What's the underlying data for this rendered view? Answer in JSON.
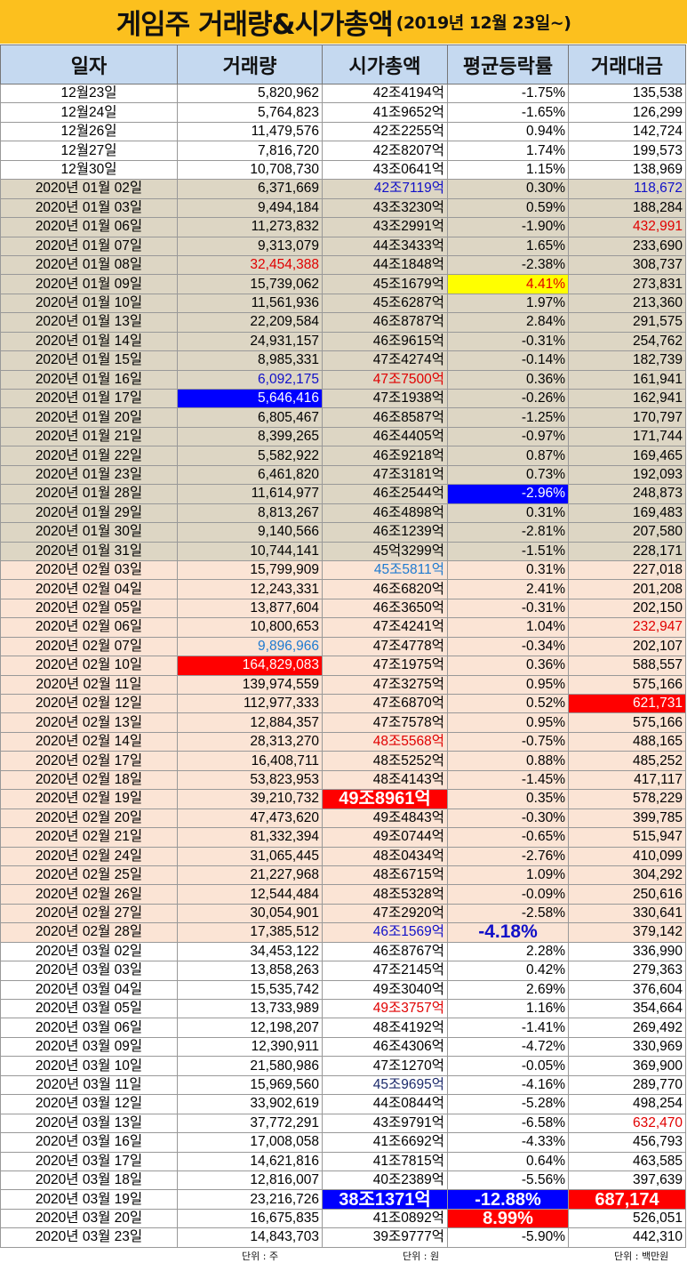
{
  "title": {
    "main": "게임주 거래량&시가총액",
    "sub": "(2019년 12월 23일~)"
  },
  "colors": {
    "title_bg": "#fcc01e",
    "header_bg": "#c5d9f0",
    "dec_group": "#ffffff",
    "jan_group": "#ddd6c4",
    "feb_group": "#fbe4d5",
    "mar_group": "#ffffff",
    "negative": "#1010c8",
    "positive": "#e00000",
    "highlight_red": "#ff0000",
    "highlight_blue": "#0000ff",
    "highlight_yellow": "#ffff00"
  },
  "headers": [
    "일자",
    "거래량",
    "시가총액",
    "평균등락률",
    "거래대금"
  ],
  "units": {
    "volume": "단위 : 주",
    "market_cap": "단위 : 원",
    "trade_value": "단위 : 백만원"
  },
  "rows": [
    {
      "date": "12월23일",
      "volume": "5,820,962",
      "cap": "42조4194억",
      "change": "-1.75%",
      "value": "135,538",
      "g": 0
    },
    {
      "date": "12월24일",
      "volume": "5,764,823",
      "cap": "41조9652억",
      "change": "-1.65%",
      "value": "126,299",
      "g": 0
    },
    {
      "date": "12월26일",
      "volume": "11,479,576",
      "cap": "42조2255억",
      "change": "0.94%",
      "value": "142,724",
      "g": 0
    },
    {
      "date": "12월27일",
      "volume": "7,816,720",
      "cap": "42조8207억",
      "change": "1.74%",
      "value": "199,573",
      "g": 0
    },
    {
      "date": "12월30일",
      "volume": "10,708,730",
      "cap": "43조0641억",
      "change": "1.15%",
      "value": "138,969",
      "g": 0
    },
    {
      "date": "2020년 01월 02일",
      "volume": "6,371,669",
      "cap": "42조7119억",
      "change": "0.30%",
      "value": "118,672",
      "g": 1,
      "cs": {
        "cap": "blue-text",
        "value": "blue-text"
      }
    },
    {
      "date": "2020년 01월 03일",
      "volume": "9,494,184",
      "cap": "43조3230억",
      "change": "0.59%",
      "value": "188,284",
      "g": 1
    },
    {
      "date": "2020년 01월 06일",
      "volume": "11,273,832",
      "cap": "43조2991억",
      "change": "-1.90%",
      "value": "432,991",
      "g": 1,
      "cs": {
        "value": "red-text"
      }
    },
    {
      "date": "2020년 01월 07일",
      "volume": "9,313,079",
      "cap": "44조3433억",
      "change": "1.65%",
      "value": "233,690",
      "g": 1
    },
    {
      "date": "2020년 01월 08일",
      "volume": "32,454,388",
      "cap": "44조1848억",
      "change": "-2.38%",
      "value": "308,737",
      "g": 1,
      "cs": {
        "volume": "red-text"
      }
    },
    {
      "date": "2020년 01월 09일",
      "volume": "15,739,062",
      "cap": "45조1679억",
      "change": "4.41%",
      "value": "273,831",
      "g": 1,
      "cs": {
        "change": "yellow-fill"
      }
    },
    {
      "date": "2020년 01월 10일",
      "volume": "11,561,936",
      "cap": "45조6287억",
      "change": "1.97%",
      "value": "213,360",
      "g": 1
    },
    {
      "date": "2020년 01월 13일",
      "volume": "22,209,584",
      "cap": "46조8787억",
      "change": "2.84%",
      "value": "291,575",
      "g": 1
    },
    {
      "date": "2020년 01월 14일",
      "volume": "24,931,157",
      "cap": "46조9615억",
      "change": "-0.31%",
      "value": "254,762",
      "g": 1
    },
    {
      "date": "2020년 01월 15일",
      "volume": "8,985,331",
      "cap": "47조4274억",
      "change": "-0.14%",
      "value": "182,739",
      "g": 1
    },
    {
      "date": "2020년 01월 16일",
      "volume": "6,092,175",
      "cap": "47조7500억",
      "change": "0.36%",
      "value": "161,941",
      "g": 1,
      "cs": {
        "volume": "blue-text",
        "cap": "red-text"
      }
    },
    {
      "date": "2020년 01월 17일",
      "volume": "5,646,416",
      "cap": "47조1938억",
      "change": "-0.26%",
      "value": "162,941",
      "g": 1,
      "cs": {
        "volume": "blue-fill"
      }
    },
    {
      "date": "2020년 01월 20일",
      "volume": "6,805,467",
      "cap": "46조8587억",
      "change": "-1.25%",
      "value": "170,797",
      "g": 1
    },
    {
      "date": "2020년 01월 21일",
      "volume": "8,399,265",
      "cap": "46조4405억",
      "change": "-0.97%",
      "value": "171,744",
      "g": 1
    },
    {
      "date": "2020년 01월 22일",
      "volume": "5,582,922",
      "cap": "46조9218억",
      "change": "0.87%",
      "value": "169,465",
      "g": 1
    },
    {
      "date": "2020년 01월 23일",
      "volume": "6,461,820",
      "cap": "47조3181억",
      "change": "0.73%",
      "value": "192,093",
      "g": 1
    },
    {
      "date": "2020년 01월 28일",
      "volume": "11,614,977",
      "cap": "46조2544억",
      "change": "-2.96%",
      "value": "248,873",
      "g": 1,
      "cs": {
        "change": "blue-fill"
      }
    },
    {
      "date": "2020년 01월 29일",
      "volume": "8,813,267",
      "cap": "46조4898억",
      "change": "0.31%",
      "value": "169,483",
      "g": 1
    },
    {
      "date": "2020년 01월 30일",
      "volume": "9,140,566",
      "cap": "46조1239억",
      "change": "-2.81%",
      "value": "207,580",
      "g": 1
    },
    {
      "date": "2020년 01월 31일",
      "volume": "10,744,141",
      "cap": "45억3299억",
      "change": "-1.51%",
      "value": "228,171",
      "g": 1
    },
    {
      "date": "2020년 02월 03일",
      "volume": "15,799,909",
      "cap": "45조5811억",
      "change": "0.31%",
      "value": "227,018",
      "g": 2,
      "cs": {
        "cap": "lblue-text"
      }
    },
    {
      "date": "2020년 02월 04일",
      "volume": "12,243,331",
      "cap": "46조6820억",
      "change": "2.41%",
      "value": "201,208",
      "g": 2
    },
    {
      "date": "2020년 02월 05일",
      "volume": "13,877,604",
      "cap": "46조3650억",
      "change": "-0.31%",
      "value": "202,150",
      "g": 2
    },
    {
      "date": "2020년 02월 06일",
      "volume": "10,800,653",
      "cap": "47조4241억",
      "change": "1.04%",
      "value": "232,947",
      "g": 2,
      "cs": {
        "value": "red-text"
      }
    },
    {
      "date": "2020년 02월 07일",
      "volume": "9,896,966",
      "cap": "47조4778억",
      "change": "-0.34%",
      "value": "202,107",
      "g": 2,
      "cs": {
        "volume": "lblue-text"
      }
    },
    {
      "date": "2020년 02월 10일",
      "volume": "164,829,083",
      "cap": "47조1975억",
      "change": "0.36%",
      "value": "588,557",
      "g": 2,
      "cs": {
        "volume": "red-fill"
      }
    },
    {
      "date": "2020년 02월 11일",
      "volume": "139,974,559",
      "cap": "47조3275억",
      "change": "0.95%",
      "value": "575,166",
      "g": 2
    },
    {
      "date": "2020년 02월 12일",
      "volume": "112,977,333",
      "cap": "47조6870억",
      "change": "0.52%",
      "value": "621,731",
      "g": 2,
      "cs": {
        "value": "red-fill"
      }
    },
    {
      "date": "2020년 02월 13일",
      "volume": "12,884,357",
      "cap": "47조7578억",
      "change": "0.95%",
      "value": "575,166",
      "g": 2
    },
    {
      "date": "2020년 02월 14일",
      "volume": "28,313,270",
      "cap": "48조5568억",
      "change": "-0.75%",
      "value": "488,165",
      "g": 2,
      "cs": {
        "cap": "red-text"
      }
    },
    {
      "date": "2020년 02월 17일",
      "volume": "16,408,711",
      "cap": "48조5252억",
      "change": "0.88%",
      "value": "485,252",
      "g": 2
    },
    {
      "date": "2020년 02월 18일",
      "volume": "53,823,953",
      "cap": "48조4143억",
      "change": "-1.45%",
      "value": "417,117",
      "g": 2
    },
    {
      "date": "2020년 02월 19일",
      "volume": "39,210,732",
      "cap": "49조8961억",
      "change": "0.35%",
      "value": "578,229",
      "g": 2,
      "cs": {
        "cap": "red-fill-big"
      }
    },
    {
      "date": "2020년 02월 20일",
      "volume": "47,473,620",
      "cap": "49조4843억",
      "change": "-0.30%",
      "value": "399,785",
      "g": 2
    },
    {
      "date": "2020년 02월 21일",
      "volume": "81,332,394",
      "cap": "49조0744억",
      "change": "-0.65%",
      "value": "515,947",
      "g": 2
    },
    {
      "date": "2020년 02월 24일",
      "volume": "31,065,445",
      "cap": "48조0434억",
      "change": "-2.76%",
      "value": "410,099",
      "g": 2
    },
    {
      "date": "2020년 02월 25일",
      "volume": "21,227,968",
      "cap": "48조6715억",
      "change": "1.09%",
      "value": "304,292",
      "g": 2
    },
    {
      "date": "2020년 02월 26일",
      "volume": "12,544,484",
      "cap": "48조5328억",
      "change": "-0.09%",
      "value": "250,616",
      "g": 2
    },
    {
      "date": "2020년 02월 27일",
      "volume": "30,054,901",
      "cap": "47조2920억",
      "change": "-2.58%",
      "value": "330,641",
      "g": 2
    },
    {
      "date": "2020년 02월 28일",
      "volume": "17,385,512",
      "cap": "46조1569억",
      "change": "-4.18%",
      "value": "379,142",
      "g": 2,
      "cs": {
        "cap": "blue-text",
        "change": "blue-big"
      }
    },
    {
      "date": "2020년 03월 02일",
      "volume": "34,453,122",
      "cap": "46조8767억",
      "change": "2.28%",
      "value": "336,990",
      "g": 3
    },
    {
      "date": "2020년 03월 03일",
      "volume": "13,858,263",
      "cap": "47조2145억",
      "change": "0.42%",
      "value": "279,363",
      "g": 3
    },
    {
      "date": "2020년 03월 04일",
      "volume": "15,535,742",
      "cap": "49조3040억",
      "change": "2.69%",
      "value": "376,604",
      "g": 3
    },
    {
      "date": "2020년 03월 05일",
      "volume": "13,733,989",
      "cap": "49조3757억",
      "change": "1.16%",
      "value": "354,664",
      "g": 3,
      "cs": {
        "cap": "red-text"
      }
    },
    {
      "date": "2020년 03월 06일",
      "volume": "12,198,207",
      "cap": "48조4192억",
      "change": "-1.41%",
      "value": "269,492",
      "g": 3
    },
    {
      "date": "2020년 03월 09일",
      "volume": "12,390,911",
      "cap": "46조4306억",
      "change": "-4.72%",
      "value": "330,969",
      "g": 3
    },
    {
      "date": "2020년 03월 10일",
      "volume": "21,580,986",
      "cap": "47조1270억",
      "change": "-0.05%",
      "value": "369,900",
      "g": 3
    },
    {
      "date": "2020년 03월 11일",
      "volume": "15,969,560",
      "cap": "45조9695억",
      "change": "-4.16%",
      "value": "289,770",
      "g": 3,
      "cs": {
        "cap": "navy-text"
      }
    },
    {
      "date": "2020년 03월 12일",
      "volume": "33,902,619",
      "cap": "44조0844억",
      "change": "-5.28%",
      "value": "498,254",
      "g": 3
    },
    {
      "date": "2020년 03월 13일",
      "volume": "37,772,291",
      "cap": "43조9791억",
      "change": "-6.58%",
      "value": "632,470",
      "g": 3,
      "cs": {
        "value": "red-text"
      }
    },
    {
      "date": "2020년 03월 16일",
      "volume": "17,008,058",
      "cap": "41조6692억",
      "change": "-4.33%",
      "value": "456,793",
      "g": 3
    },
    {
      "date": "2020년 03월 17일",
      "volume": "14,621,816",
      "cap": "41조7815억",
      "change": "0.64%",
      "value": "463,585",
      "g": 3
    },
    {
      "date": "2020년 03월 18일",
      "volume": "12,816,007",
      "cap": "40조2389억",
      "change": "-5.56%",
      "value": "397,639",
      "g": 3
    },
    {
      "date": "2020년 03월 19일",
      "volume": "23,216,726",
      "cap": "38조1371억",
      "change": "-12.88%",
      "value": "687,174",
      "g": 3,
      "cs": {
        "cap": "blue-fill-big",
        "change": "blue-fill-big",
        "value": "red-fill-big"
      }
    },
    {
      "date": "2020년 03월 20일",
      "volume": "16,675,835",
      "cap": "41조0892억",
      "change": "8.99%",
      "value": "526,051",
      "g": 3,
      "cs": {
        "change": "red-fill-big"
      }
    },
    {
      "date": "2020년 03월 23일",
      "volume": "14,843,703",
      "cap": "39조9777억",
      "change": "-5.90%",
      "value": "442,310",
      "g": 3,
      "last": true
    }
  ]
}
